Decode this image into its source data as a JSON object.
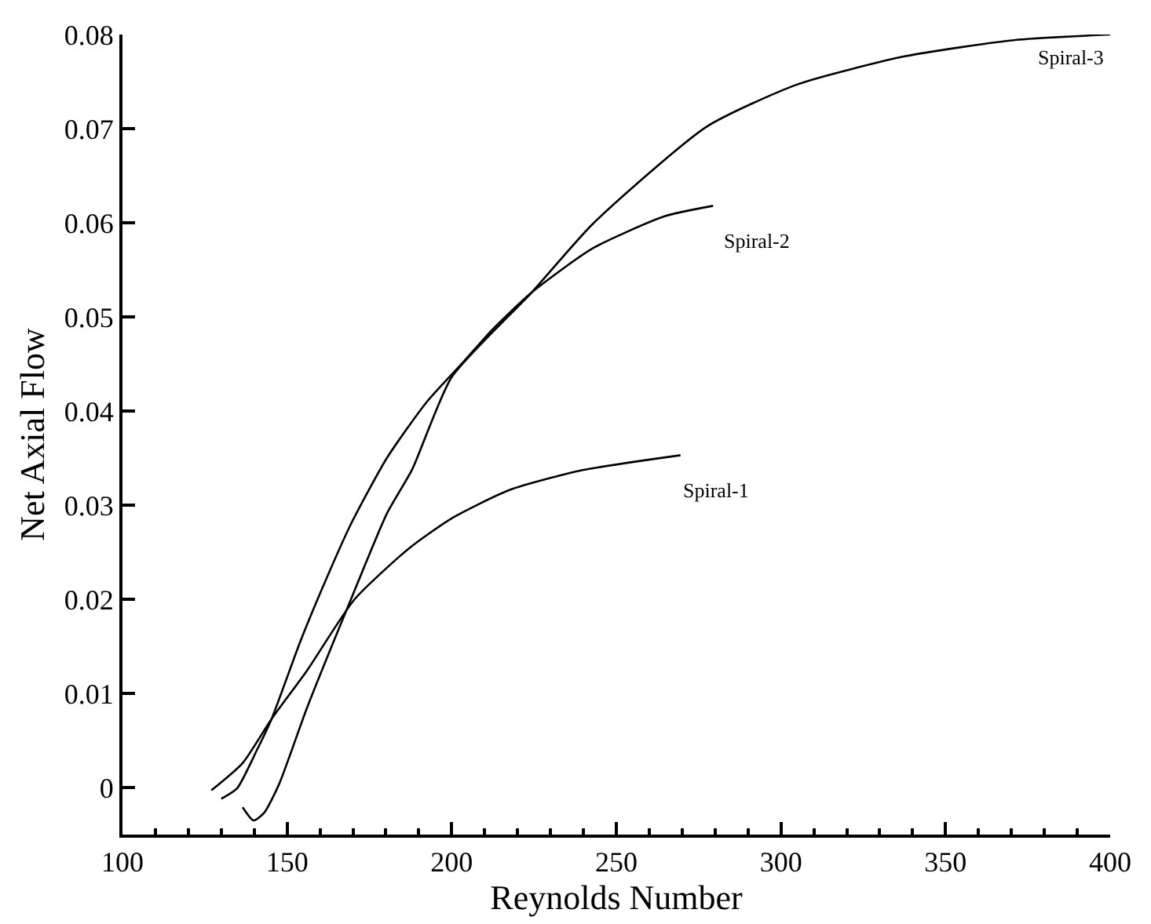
{
  "chart_data": {
    "type": "line",
    "xlabel": "Reynolds Number",
    "ylabel": "Net Axial Flow",
    "xlim": [
      100,
      400
    ],
    "xticks": [
      100,
      150,
      200,
      250,
      300,
      350,
      400
    ],
    "ylim": [
      -0.005,
      0.08
    ],
    "yticks": [
      0,
      0.01,
      0.02,
      0.03,
      0.04,
      0.05,
      0.06,
      0.07,
      0.08
    ],
    "legend": false,
    "marker": "none",
    "line_style": "solid",
    "series": [
      {
        "name": "Spiral-1",
        "color": "#000000",
        "x": [
          127,
          136.5,
          145.3,
          156,
          170.5,
          187,
          200,
          217.5,
          239.5,
          269.5
        ],
        "values": [
          -0.0003,
          0.0026,
          0.0073,
          0.0124,
          0.02,
          0.0254,
          0.0286,
          0.0316,
          0.0337,
          0.0353
        ]
      },
      {
        "name": "Spiral-2",
        "color": "#000000",
        "x": [
          130,
          134.8,
          141,
          145.3,
          154,
          160.6,
          169.4,
          180.3,
          192.5,
          203.5,
          212.2,
          224.3,
          242.9,
          264.8,
          279.4
        ],
        "values": [
          -0.0012,
          -0.0001,
          0.0041,
          0.0073,
          0.0155,
          0.0211,
          0.028,
          0.035,
          0.041,
          0.0452,
          0.0486,
          0.0526,
          0.0573,
          0.0607,
          0.0618
        ]
      },
      {
        "name": "Spiral-3",
        "color": "#000000",
        "x": [
          136.5,
          139.8,
          143,
          147.5,
          156.2,
          169.4,
          180.3,
          188,
          200,
          224.3,
          242.9,
          277.4,
          305,
          337.9,
          370.7,
          400
        ],
        "values": [
          -0.0021,
          -0.0035,
          -0.0027,
          0.0003,
          0.0086,
          0.02,
          0.0291,
          0.0338,
          0.0436,
          0.0526,
          0.0599,
          0.0702,
          0.0747,
          0.0777,
          0.0794,
          0.08
        ]
      }
    ]
  }
}
